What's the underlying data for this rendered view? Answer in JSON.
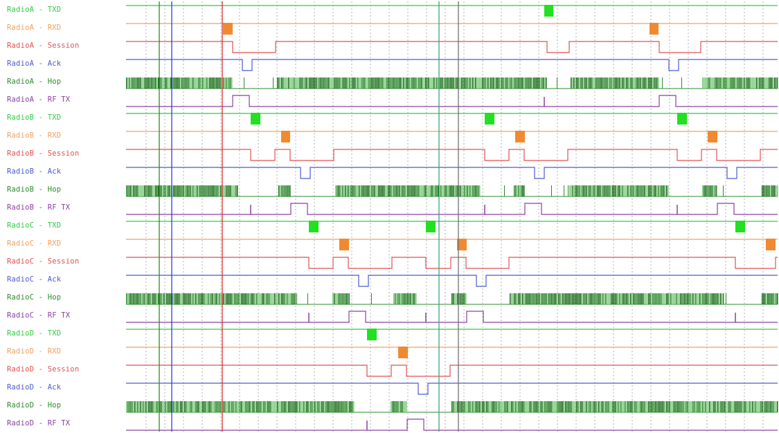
{
  "colors": {
    "txd": "#2ecc40",
    "rxd": "#f0a060",
    "session": "#e05050",
    "ack": "#4a5ad0",
    "hop": "#2d8a2d",
    "rftx": "#8a40a0",
    "hop_dark": "#1a6a1a",
    "hop_light": "#7ac87a",
    "txd_block": "#22e022",
    "rxd_block": "#f08a30",
    "grid": "#b0b0b0",
    "cursor_green": "#2a8a2a",
    "cursor_blue": "#2040e0",
    "cursor_red": "#e03030",
    "cursor_teal": "#40a080",
    "cursor_gray": "#707070"
  },
  "signals": [
    {
      "label": "RadioA - TXD",
      "type": "txd"
    },
    {
      "label": "RadioA - RXD",
      "type": "rxd"
    },
    {
      "label": "RadioA - Session",
      "type": "session"
    },
    {
      "label": "RadioA - Ack",
      "type": "ack"
    },
    {
      "label": "RadioA - Hop",
      "type": "hop"
    },
    {
      "label": "RadioA - RF TX",
      "type": "rftx"
    },
    {
      "label": "RadioB - TXD",
      "type": "txd"
    },
    {
      "label": "RadioB - RXD",
      "type": "rxd"
    },
    {
      "label": "RadioB - Session",
      "type": "session"
    },
    {
      "label": "RadioB - Ack",
      "type": "ack"
    },
    {
      "label": "RadioB - Hop",
      "type": "hop"
    },
    {
      "label": "RadioB - RF TX",
      "type": "rftx"
    },
    {
      "label": "RadioC - TXD",
      "type": "txd"
    },
    {
      "label": "RadioC - RXD",
      "type": "rxd"
    },
    {
      "label": "RadioC - Session",
      "type": "session"
    },
    {
      "label": "RadioC - Ack",
      "type": "ack"
    },
    {
      "label": "RadioC - Hop",
      "type": "hop"
    },
    {
      "label": "RadioC - RF TX",
      "type": "rftx"
    },
    {
      "label": "RadioD - TXD",
      "type": "txd"
    },
    {
      "label": "RadioD - RXD",
      "type": "rxd"
    },
    {
      "label": "RadioD - Session",
      "type": "session"
    },
    {
      "label": "RadioD - Ack",
      "type": "ack"
    },
    {
      "label": "RadioD - Hop",
      "type": "hop"
    },
    {
      "label": "RadioD - RF TX",
      "type": "rftx"
    }
  ]
}
